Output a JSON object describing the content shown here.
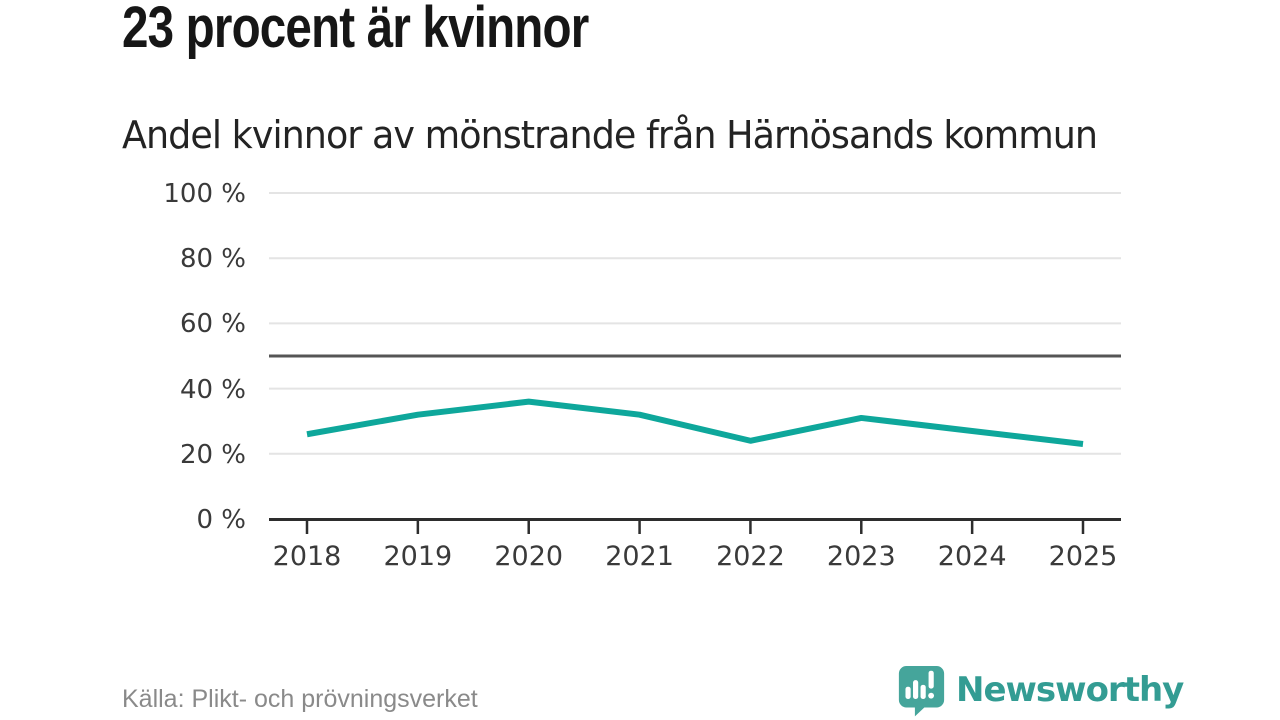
{
  "header": {
    "title": "23 procent är kvinnor",
    "subtitle": "Andel kvinnor av mönstrande från Härnösands kommun"
  },
  "chart_data": {
    "type": "line",
    "x": [
      "2018",
      "2019",
      "2020",
      "2021",
      "2022",
      "2023",
      "2024",
      "2025"
    ],
    "series": [
      {
        "name": "Andel kvinnor av mönstrande",
        "values": [
          26,
          32,
          36,
          32,
          24,
          31,
          27,
          23
        ]
      }
    ],
    "unit": "%",
    "ylim": [
      0,
      100
    ],
    "yticks": [
      {
        "value": 0,
        "label": "0 %"
      },
      {
        "value": 20,
        "label": "20 %"
      },
      {
        "value": 40,
        "label": "40 %"
      },
      {
        "value": 60,
        "label": "60 %"
      },
      {
        "value": 80,
        "label": "80 %"
      },
      {
        "value": 100,
        "label": "100 %"
      }
    ],
    "reference_line": {
      "value": 50
    },
    "grid": true,
    "legend": "none",
    "title": "23 procent är kvinnor",
    "xlabel": "",
    "ylabel": ""
  },
  "footer": {
    "source": "Källa: Plikt- och prövningsverket",
    "logo_text": "Newsworthy"
  },
  "colors": {
    "line": "#0ea79b",
    "grid": "#e4e4e4",
    "axis": "#2d2d2d",
    "reference_line": "#555555",
    "title": "#161616",
    "subtitle": "#232323",
    "axis_label": "#3a3a3a",
    "source": "#8a8a8a",
    "logo": "#45a59b",
    "logo_text": "#339c93"
  }
}
